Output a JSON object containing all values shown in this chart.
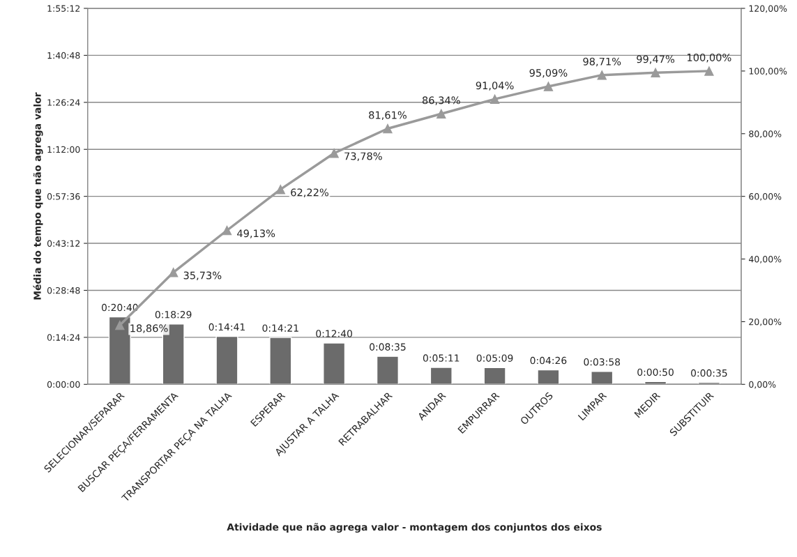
{
  "chart_data": {
    "type": "bar",
    "xlabel": "Atividade que não agrega valor - montagem dos conjuntos dos eixos",
    "ylabel": "Média do tempo que não agrega valor",
    "categories": [
      "SELECIONAR/SEPARAR",
      "BUSCAR PEÇA/FERRAMENTA",
      "TRANSPORTAR PEÇA NA TALHA",
      "ESPERAR",
      "AJUSTAR A TALHA",
      "RETRABALHAR",
      "ANDAR",
      "EMPURRAR",
      "OUTROS",
      "LIMPAR",
      "MEDIR",
      "SUBSTITUIR"
    ],
    "series": [
      {
        "color": "#6b6b6b",
        "values": [
          1240,
          1109,
          881,
          861,
          760,
          515,
          311,
          309,
          266,
          238,
          50,
          35
        ],
        "value_labels": [
          "0:20:40",
          "0:18:29",
          "0:14:41",
          "0:14:21",
          "0:12:40",
          "0:08:35",
          "0:05:11",
          "0:05:09",
          "0:04:26",
          "0:03:58",
          "0:00:50",
          "0:00:35"
        ]
      },
      {
        "type": "line",
        "axis": "y2",
        "color": "#9a9a9a",
        "marker": "triangle",
        "line_style": "solid",
        "values": [
          18.86,
          35.73,
          49.13,
          62.22,
          73.78,
          81.61,
          86.34,
          91.04,
          95.09,
          98.71,
          99.47,
          100
        ],
        "value_labels": [
          "18,86%",
          "35,73%",
          "49,13%",
          "62,22%",
          "73,78%",
          "81,61%",
          "86,34%",
          "91,04%",
          "95,09%",
          "98,71%",
          "99,47%",
          "100,00%"
        ]
      }
    ],
    "ylim": [
      0,
      6912
    ],
    "yticks": [
      {
        "value": 0,
        "label": "0:00:00"
      },
      {
        "value": 864,
        "label": "0:14:24"
      },
      {
        "value": 1728,
        "label": "0:28:48"
      },
      {
        "value": 2592,
        "label": "0:43:12"
      },
      {
        "value": 3456,
        "label": "0:57:36"
      },
      {
        "value": 4320,
        "label": "1:12:00"
      },
      {
        "value": 5184,
        "label": "1:26:24"
      },
      {
        "value": 6048,
        "label": "1:40:48"
      },
      {
        "value": 6912,
        "label": "1:55:12"
      }
    ],
    "y2lim": [
      0,
      120
    ],
    "y2ticks": [
      {
        "value": 0,
        "label": "0,00%"
      },
      {
        "value": 20,
        "label": "20,00%"
      },
      {
        "value": 40,
        "label": "40,00%"
      },
      {
        "value": 60,
        "label": "60,00%"
      },
      {
        "value": 80,
        "label": "80,00%"
      },
      {
        "value": 100,
        "label": "100,00%"
      },
      {
        "value": 120,
        "label": "120,00%"
      }
    ],
    "grid": "y",
    "legend": false
  }
}
